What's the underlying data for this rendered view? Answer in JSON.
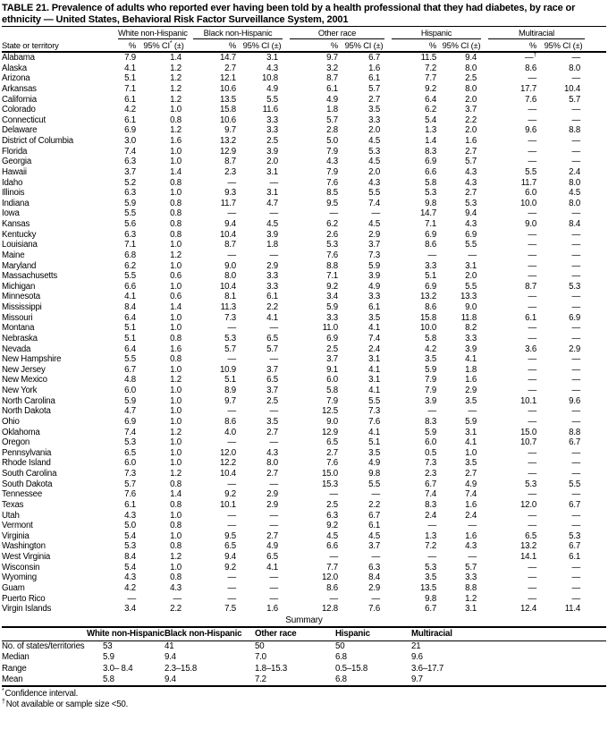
{
  "title": "TABLE 21. Prevalence of adults who reported ever having been told by a health professional that they had diabetes, by race or ethnicity — United States, Behavioral Risk Factor Surveillance System, 2001",
  "table": {
    "state_header": "State or territory",
    "groups": [
      "White non-Hispanic",
      "Black non-Hispanic",
      "Other race",
      "Hispanic",
      "Multiracial"
    ],
    "subheaders": {
      "pct": "%",
      "ci_first": "95% CI* (±)",
      "ci": "95% CI (±)"
    },
    "rows": [
      {
        "state": "Alabama",
        "values": [
          "7.9",
          "1.4",
          "14.7",
          "3.1",
          "9.7",
          "6.7",
          "11.5",
          "9.4",
          "—†",
          "—"
        ]
      },
      {
        "state": "Alaska",
        "values": [
          "4.1",
          "1.2",
          "2.7",
          "4.3",
          "3.2",
          "1.6",
          "7.2",
          "8.0",
          "8.6",
          "8.0"
        ]
      },
      {
        "state": "Arizona",
        "values": [
          "5.1",
          "1.2",
          "12.1",
          "10.8",
          "8.7",
          "6.1",
          "7.7",
          "2.5",
          "—",
          "—"
        ]
      },
      {
        "state": "Arkansas",
        "values": [
          "7.1",
          "1.2",
          "10.6",
          "4.9",
          "6.1",
          "5.7",
          "9.2",
          "8.0",
          "17.7",
          "10.4"
        ]
      },
      {
        "state": "California",
        "values": [
          "6.1",
          "1.2",
          "13.5",
          "5.5",
          "4.9",
          "2.7",
          "6.4",
          "2.0",
          "7.6",
          "5.7"
        ]
      },
      {
        "state": "Colorado",
        "values": [
          "4.2",
          "1.0",
          "15.8",
          "11.6",
          "1.8",
          "3.5",
          "6.2",
          "3.7",
          "—",
          "—"
        ]
      },
      {
        "state": "Connecticut",
        "values": [
          "6.1",
          "0.8",
          "10.6",
          "3.3",
          "5.7",
          "3.3",
          "5.4",
          "2.2",
          "—",
          "—"
        ]
      },
      {
        "state": "Delaware",
        "values": [
          "6.9",
          "1.2",
          "9.7",
          "3.3",
          "2.8",
          "2.0",
          "1.3",
          "2.0",
          "9.6",
          "8.8"
        ]
      },
      {
        "state": "District of Columbia",
        "values": [
          "3.0",
          "1.6",
          "13.2",
          "2.5",
          "5.0",
          "4.5",
          "1.4",
          "1.6",
          "—",
          "—"
        ]
      },
      {
        "state": "Florida",
        "values": [
          "7.4",
          "1.0",
          "12.9",
          "3.9",
          "7.9",
          "5.3",
          "8.3",
          "2.7",
          "—",
          "—"
        ]
      },
      {
        "state": "Georgia",
        "values": [
          "6.3",
          "1.0",
          "8.7",
          "2.0",
          "4.3",
          "4.5",
          "6.9",
          "5.7",
          "—",
          "—"
        ]
      },
      {
        "state": "Hawaii",
        "values": [
          "3.7",
          "1.4",
          "2.3",
          "3.1",
          "7.9",
          "2.0",
          "6.6",
          "4.3",
          "5.5",
          "2.4"
        ]
      },
      {
        "state": "Idaho",
        "values": [
          "5.2",
          "0.8",
          "—",
          "—",
          "7.6",
          "4.3",
          "5.8",
          "4.3",
          "11.7",
          "8.0"
        ]
      },
      {
        "state": "Illinois",
        "values": [
          "6.3",
          "1.0",
          "9.3",
          "3.1",
          "8.5",
          "5.5",
          "5.3",
          "2.7",
          "6.0",
          "4.5"
        ]
      },
      {
        "state": "Indiana",
        "values": [
          "5.9",
          "0.8",
          "11.7",
          "4.7",
          "9.5",
          "7.4",
          "9.8",
          "5.3",
          "10.0",
          "8.0"
        ]
      },
      {
        "state": "Iowa",
        "values": [
          "5.5",
          "0.8",
          "—",
          "—",
          "—",
          "—",
          "14.7",
          "9.4",
          "—",
          "—"
        ]
      },
      {
        "state": "Kansas",
        "values": [
          "5.6",
          "0.8",
          "9.4",
          "4.5",
          "6.2",
          "4.5",
          "7.1",
          "4.3",
          "9.0",
          "8.4"
        ]
      },
      {
        "state": "Kentucky",
        "values": [
          "6.3",
          "0.8",
          "10.4",
          "3.9",
          "2.6",
          "2.9",
          "6.9",
          "6.9",
          "—",
          "—"
        ]
      },
      {
        "state": "Louisiana",
        "values": [
          "7.1",
          "1.0",
          "8.7",
          "1.8",
          "5.3",
          "3.7",
          "8.6",
          "5.5",
          "—",
          "—"
        ]
      },
      {
        "state": "Maine",
        "values": [
          "6.8",
          "1.2",
          "—",
          "—",
          "7.6",
          "7.3",
          "—",
          "—",
          "—",
          "—"
        ]
      },
      {
        "state": "Maryland",
        "values": [
          "6.2",
          "1.0",
          "9.0",
          "2.9",
          "8.8",
          "5.9",
          "3.3",
          "3.1",
          "—",
          "—"
        ]
      },
      {
        "state": "Massachusetts",
        "values": [
          "5.5",
          "0.6",
          "8.0",
          "3.3",
          "7.1",
          "3.9",
          "5.1",
          "2.0",
          "—",
          "—"
        ]
      },
      {
        "state": "Michigan",
        "values": [
          "6.6",
          "1.0",
          "10.4",
          "3.3",
          "9.2",
          "4.9",
          "6.9",
          "5.5",
          "8.7",
          "5.3"
        ]
      },
      {
        "state": "Minnesota",
        "values": [
          "4.1",
          "0.6",
          "8.1",
          "6.1",
          "3.4",
          "3.3",
          "13.2",
          "13.3",
          "—",
          "—"
        ]
      },
      {
        "state": "Mississippi",
        "values": [
          "8.4",
          "1.4",
          "11.3",
          "2.2",
          "5.9",
          "6.1",
          "8.6",
          "9.0",
          "—",
          "—"
        ]
      },
      {
        "state": "Missouri",
        "values": [
          "6.4",
          "1.0",
          "7.3",
          "4.1",
          "3.3",
          "3.5",
          "15.8",
          "11.8",
          "6.1",
          "6.9"
        ]
      },
      {
        "state": "Montana",
        "values": [
          "5.1",
          "1.0",
          "—",
          "—",
          "11.0",
          "4.1",
          "10.0",
          "8.2",
          "—",
          "—"
        ]
      },
      {
        "state": "Nebraska",
        "values": [
          "5.1",
          "0.8",
          "5.3",
          "6.5",
          "6.9",
          "7.4",
          "5.8",
          "3.3",
          "—",
          "—"
        ]
      },
      {
        "state": "Nevada",
        "values": [
          "6.4",
          "1.6",
          "5.7",
          "5.7",
          "2.5",
          "2.4",
          "4.2",
          "3.9",
          "3.6",
          "2.9"
        ]
      },
      {
        "state": "New Hampshire",
        "values": [
          "5.5",
          "0.8",
          "—",
          "—",
          "3.7",
          "3.1",
          "3.5",
          "4.1",
          "—",
          "—"
        ]
      },
      {
        "state": "New Jersey",
        "values": [
          "6.7",
          "1.0",
          "10.9",
          "3.7",
          "9.1",
          "4.1",
          "5.9",
          "1.8",
          "—",
          "—"
        ]
      },
      {
        "state": "New Mexico",
        "values": [
          "4.8",
          "1.2",
          "5.1",
          "6.5",
          "6.0",
          "3.1",
          "7.9",
          "1.6",
          "—",
          "—"
        ]
      },
      {
        "state": "New York",
        "values": [
          "6.0",
          "1.0",
          "8.9",
          "3.7",
          "5.8",
          "4.1",
          "7.9",
          "2.9",
          "—",
          "—"
        ]
      },
      {
        "state": "North Carolina",
        "values": [
          "5.9",
          "1.0",
          "9.7",
          "2.5",
          "7.9",
          "5.5",
          "3.9",
          "3.5",
          "10.1",
          "9.6"
        ]
      },
      {
        "state": "North Dakota",
        "values": [
          "4.7",
          "1.0",
          "—",
          "—",
          "12.5",
          "7.3",
          "—",
          "—",
          "—",
          "—"
        ]
      },
      {
        "state": "Ohio",
        "values": [
          "6.9",
          "1.0",
          "8.6",
          "3.5",
          "9.0",
          "7.6",
          "8.3",
          "5.9",
          "—",
          "—"
        ]
      },
      {
        "state": "Oklahoma",
        "values": [
          "7.4",
          "1.2",
          "4.0",
          "2.7",
          "12.9",
          "4.1",
          "5.9",
          "3.1",
          "15.0",
          "8.8"
        ]
      },
      {
        "state": "Oregon",
        "values": [
          "5.3",
          "1.0",
          "—",
          "—",
          "6.5",
          "5.1",
          "6.0",
          "4.1",
          "10.7",
          "6.7"
        ]
      },
      {
        "state": "Pennsylvania",
        "values": [
          "6.5",
          "1.0",
          "12.0",
          "4.3",
          "2.7",
          "3.5",
          "0.5",
          "1.0",
          "—",
          "—"
        ]
      },
      {
        "state": "Rhode Island",
        "values": [
          "6.0",
          "1.0",
          "12.2",
          "8.0",
          "7.6",
          "4.9",
          "7.3",
          "3.5",
          "—",
          "—"
        ]
      },
      {
        "state": "South Carolina",
        "values": [
          "7.3",
          "1.2",
          "10.4",
          "2.7",
          "15.0",
          "9.8",
          "2.3",
          "2.7",
          "—",
          "—"
        ]
      },
      {
        "state": "South Dakota",
        "values": [
          "5.7",
          "0.8",
          "—",
          "—",
          "15.3",
          "5.5",
          "6.7",
          "4.9",
          "5.3",
          "5.5"
        ]
      },
      {
        "state": "Tennessee",
        "values": [
          "7.6",
          "1.4",
          "9.2",
          "2.9",
          "—",
          "—",
          "7.4",
          "7.4",
          "—",
          "—"
        ]
      },
      {
        "state": "Texas",
        "values": [
          "6.1",
          "0.8",
          "10.1",
          "2.9",
          "2.5",
          "2.2",
          "8.3",
          "1.6",
          "12.0",
          "6.7"
        ]
      },
      {
        "state": "Utah",
        "values": [
          "4.3",
          "1.0",
          "—",
          "—",
          "6.3",
          "6.7",
          "2.4",
          "2.4",
          "—",
          "—"
        ]
      },
      {
        "state": "Vermont",
        "values": [
          "5.0",
          "0.8",
          "—",
          "—",
          "9.2",
          "6.1",
          "—",
          "—",
          "—",
          "—"
        ]
      },
      {
        "state": "Virginia",
        "values": [
          "5.4",
          "1.0",
          "9.5",
          "2.7",
          "4.5",
          "4.5",
          "1.3",
          "1.6",
          "6.5",
          "5.3"
        ]
      },
      {
        "state": "Washington",
        "values": [
          "5.3",
          "0.8",
          "6.5",
          "4.9",
          "6.6",
          "3.7",
          "7.2",
          "4.3",
          "13.2",
          "6.7"
        ]
      },
      {
        "state": "West Virginia",
        "values": [
          "8.4",
          "1.2",
          "9.4",
          "6.5",
          "—",
          "—",
          "—",
          "—",
          "14.1",
          "6.1"
        ]
      },
      {
        "state": "Wisconsin",
        "values": [
          "5.4",
          "1.0",
          "9.2",
          "4.1",
          "7.7",
          "6.3",
          "5.3",
          "5.7",
          "—",
          "—"
        ]
      },
      {
        "state": "Wyoming",
        "values": [
          "4.3",
          "0.8",
          "—",
          "—",
          "12.0",
          "8.4",
          "3.5",
          "3.3",
          "—",
          "—"
        ]
      },
      {
        "state": "Guam",
        "values": [
          "4.2",
          "4.3",
          "—",
          "—",
          "8.6",
          "2.9",
          "13.5",
          "8.8",
          "—",
          "—"
        ]
      },
      {
        "state": "Puerto Rico",
        "values": [
          "—",
          "—",
          "—",
          "—",
          "—",
          "—",
          "9.8",
          "1.2",
          "—",
          "—"
        ]
      },
      {
        "state": "Virgin Islands",
        "values": [
          "3.4",
          "2.2",
          "7.5",
          "1.6",
          "12.8",
          "7.6",
          "6.7",
          "3.1",
          "12.4",
          "11.4"
        ]
      }
    ]
  },
  "summary": {
    "title": "Summary",
    "columns": [
      "White non-Hispanic",
      "Black non-Hispanic",
      "Other race",
      "Hispanic",
      "Multiracial"
    ],
    "rows": [
      {
        "label": "No. of states/territories",
        "values": [
          "53",
          "41",
          "50",
          "50",
          "21"
        ]
      },
      {
        "label": "Median",
        "values": [
          "5.9",
          "9.4",
          "7.0",
          "6.8",
          "9.6"
        ]
      },
      {
        "label": "Range",
        "values": [
          "3.0– 8.4",
          "2.3–15.8",
          "1.8–15.3",
          "0.5–15.8",
          "3.6–17.7"
        ]
      },
      {
        "label": "Mean",
        "values": [
          "5.8",
          "9.4",
          "7.2",
          "6.8",
          "9.7"
        ]
      }
    ]
  },
  "footnotes": [
    {
      "marker": "*",
      "text": "Confidence interval."
    },
    {
      "marker": "†",
      "text": "Not available or sample size <50."
    }
  ]
}
